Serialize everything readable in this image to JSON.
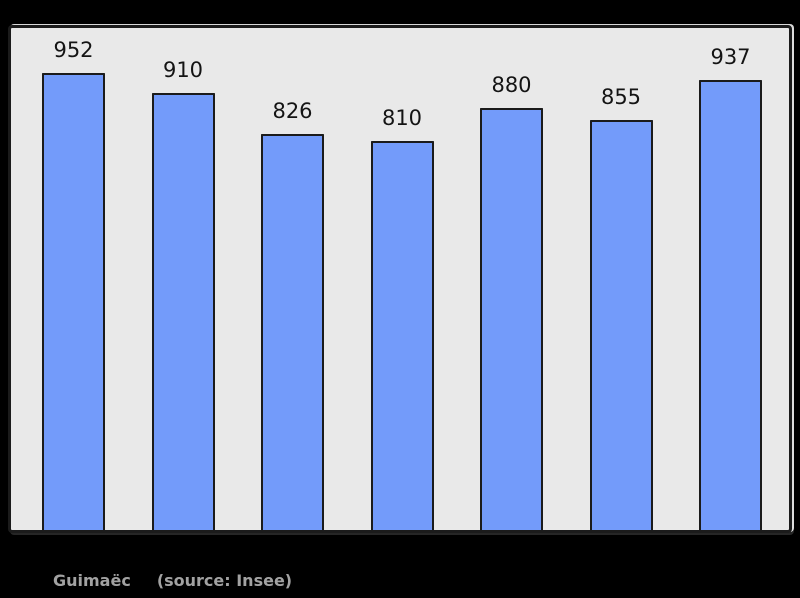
{
  "chart_data": {
    "type": "bar",
    "values": [
      952,
      910,
      826,
      810,
      880,
      855,
      937
    ],
    "bar_labels": [
      "952",
      "910",
      "826",
      "810",
      "880",
      "855",
      "937"
    ],
    "title": "",
    "xlabel": "",
    "ylabel": "",
    "grid": false,
    "legend": false,
    "colors": {
      "bar_fill": "#739bfa",
      "bar_border": "#1b1b1b",
      "panel_background": "#e9e9e9",
      "page_background": "#000000",
      "value_label": "#141414"
    }
  },
  "caption": {
    "commune": "Guimaëc",
    "source": "(source: Insee)",
    "color": "#a2a2a2"
  }
}
